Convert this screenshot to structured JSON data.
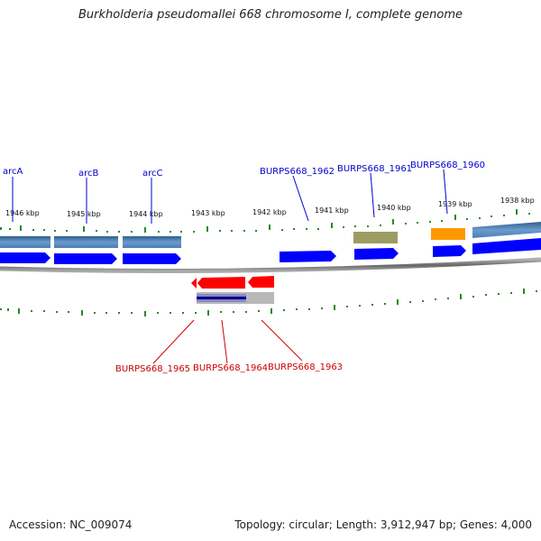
{
  "title": "Burkholderia pseudomallei 668 chromosome I, complete genome",
  "footer": {
    "accession": "Accession: NC_009074",
    "stats": "Topology: circular; Length: 3,912,947 bp; Genes: 4,000"
  },
  "ticks": [
    "1946 kbp",
    "1945 kbp",
    "1944 kbp",
    "1943 kbp",
    "1942 kbp",
    "1941 kbp",
    "1940 kbp",
    "1939 kbp",
    "1938 kbp"
  ],
  "gene_labels_top": [
    "arcA",
    "arcB",
    "arcC",
    "BURPS668_1962",
    "BURPS668_1961",
    "BURPS668_1960"
  ],
  "gene_labels_bottom": [
    "BURPS668_1965",
    "BURPS668_1964",
    "BURPS668_1963"
  ],
  "colors": {
    "forward_cds": "#0000ff",
    "reverse_cds": "#ff0000",
    "forward_gene": "#4a7fb5",
    "tick": "#228b22",
    "backbone": "#888888",
    "label_top": "#0000cc",
    "label_bottom": "#cc0000",
    "feature_olive": "#9c9c62",
    "feature_orange": "#ff9900",
    "feature_navy": "#000080"
  }
}
